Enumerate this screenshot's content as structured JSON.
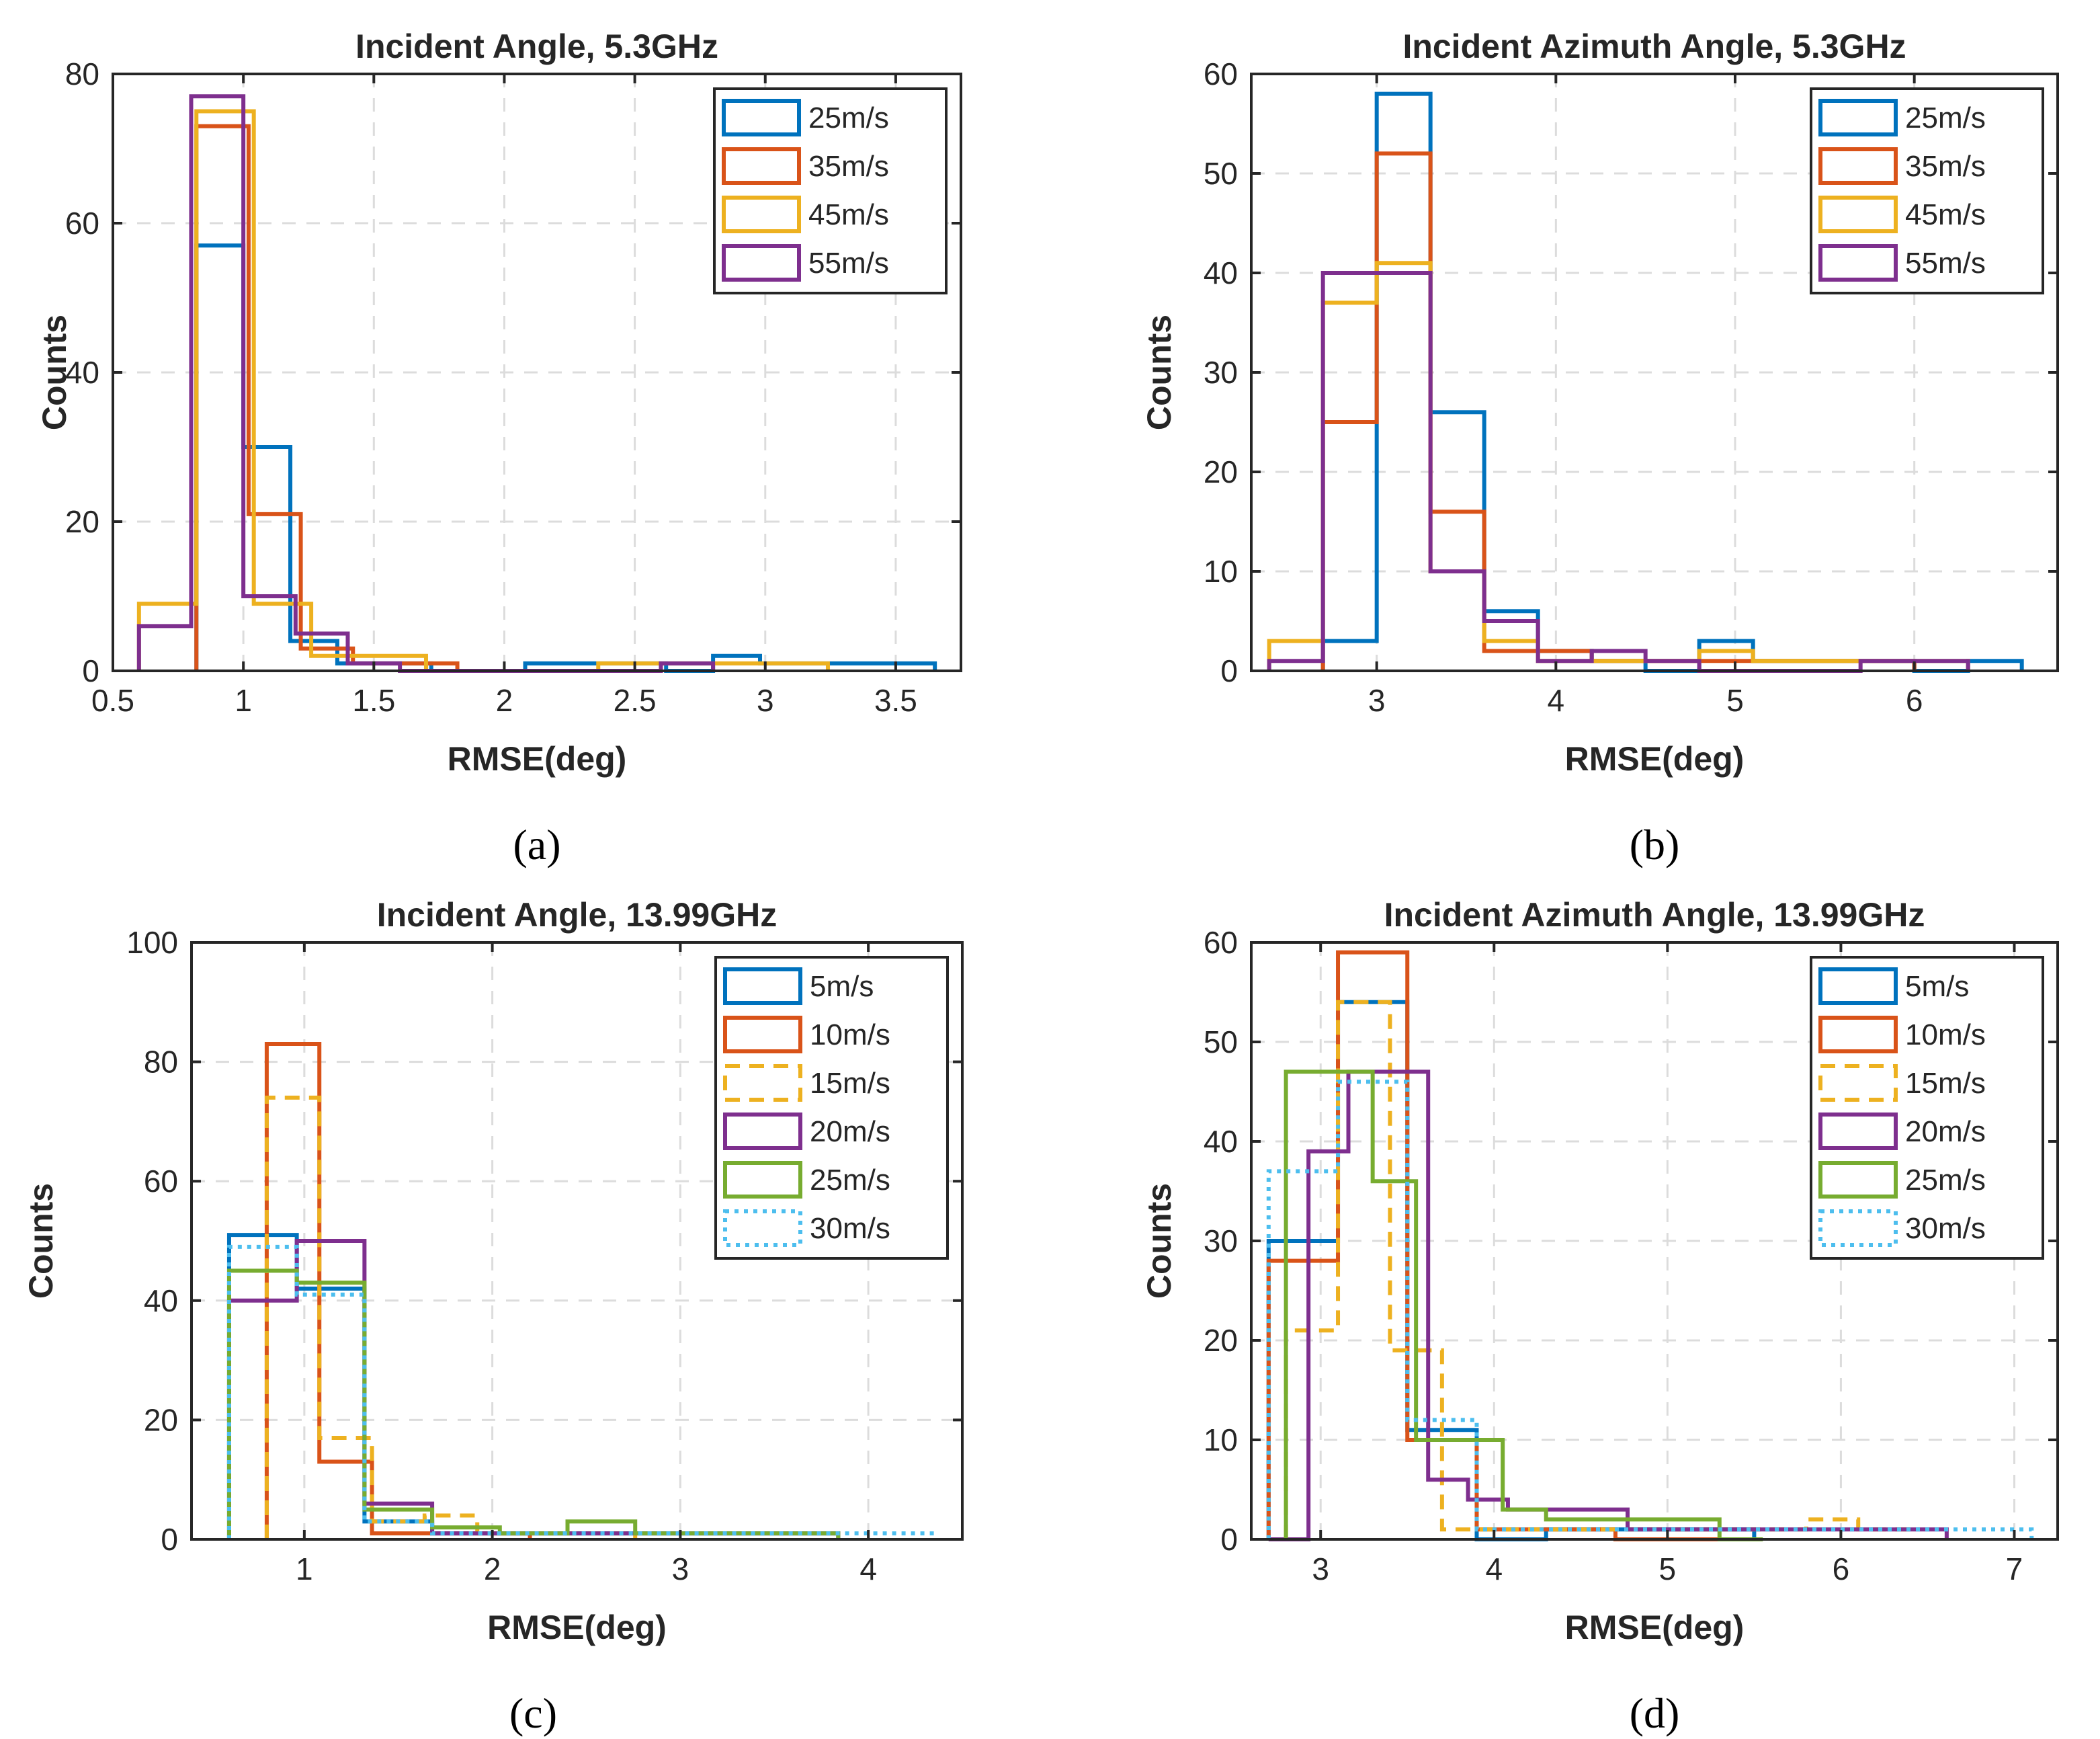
{
  "chart_data": [
    {
      "type": "histogram",
      "caption": "(a)",
      "title": "Incident Angle, 5.3GHz",
      "xlabel": "RMSE(deg)",
      "ylabel": "Counts",
      "xlim": [
        0.5,
        3.75
      ],
      "ylim": [
        0,
        80
      ],
      "xticks": [
        0.5,
        1,
        1.5,
        2,
        2.5,
        3,
        3.5
      ],
      "xtick_labels": [
        "0.5",
        "1",
        "1.5",
        "2",
        "2.5",
        "3",
        "3.5"
      ],
      "yticks": [
        0,
        20,
        40,
        60,
        80
      ],
      "ytick_labels": [
        "0",
        "20",
        "40",
        "60",
        "80"
      ],
      "grid": true,
      "legend_position": "top-right",
      "series": [
        {
          "name": "25m/s",
          "color": "#0072BD",
          "dash": "solid",
          "edges": [
            0.82,
            1.0,
            1.18,
            1.36,
            1.54,
            1.72,
            1.9,
            2.08,
            2.26,
            2.44,
            2.62,
            2.8,
            2.98,
            3.16,
            3.34,
            3.52,
            3.65
          ],
          "counts": [
            57,
            30,
            4,
            1,
            1,
            0,
            0,
            1,
            1,
            1,
            0,
            2,
            1,
            1,
            1,
            1
          ]
        },
        {
          "name": "35m/s",
          "color": "#D95319",
          "dash": "solid",
          "edges": [
            0.82,
            1.02,
            1.22,
            1.42,
            1.62,
            1.82
          ],
          "counts": [
            73,
            21,
            3,
            1,
            1
          ]
        },
        {
          "name": "45m/s",
          "color": "#EDB120",
          "dash": "solid",
          "edges": [
            0.6,
            0.82,
            1.04,
            1.26,
            1.48,
            1.7,
            1.92,
            2.14,
            2.36,
            2.58,
            2.8,
            3.02,
            3.24
          ],
          "counts": [
            9,
            75,
            9,
            2,
            2,
            0,
            0,
            0,
            1,
            1,
            1,
            1
          ]
        },
        {
          "name": "55m/s",
          "color": "#7E2F8E",
          "dash": "solid",
          "edges": [
            0.6,
            0.8,
            1.0,
            1.2,
            1.4,
            1.6,
            1.8,
            2.0,
            2.2,
            2.4,
            2.6,
            2.8
          ],
          "counts": [
            6,
            77,
            10,
            5,
            1,
            0,
            0,
            0,
            0,
            0,
            1
          ]
        }
      ]
    },
    {
      "type": "histogram",
      "caption": "(b)",
      "title": "Incident Azimuth Angle, 5.3GHz",
      "xlabel": "RMSE(deg)",
      "ylabel": "Counts",
      "xlim": [
        2.3,
        6.8
      ],
      "ylim": [
        0,
        60
      ],
      "xticks": [
        3,
        4,
        5,
        6
      ],
      "xtick_labels": [
        "3",
        "4",
        "5",
        "6"
      ],
      "yticks": [
        0,
        10,
        20,
        30,
        40,
        50,
        60
      ],
      "ytick_labels": [
        "0",
        "10",
        "20",
        "30",
        "40",
        "50",
        "60"
      ],
      "grid": true,
      "legend_position": "top-right",
      "series": [
        {
          "name": "25m/s",
          "color": "#0072BD",
          "dash": "solid",
          "edges": [
            2.7,
            3.0,
            3.3,
            3.6,
            3.9,
            4.2,
            4.5,
            4.8,
            5.1,
            5.4,
            5.7,
            6.0,
            6.3,
            6.6
          ],
          "counts": [
            3,
            58,
            26,
            6,
            2,
            1,
            0,
            3,
            1,
            1,
            1,
            0,
            1
          ]
        },
        {
          "name": "35m/s",
          "color": "#D95319",
          "dash": "solid",
          "edges": [
            2.7,
            3.0,
            3.3,
            3.6,
            3.9,
            4.2,
            4.5,
            4.8,
            5.1,
            5.4,
            5.7,
            6.0
          ],
          "counts": [
            25,
            52,
            16,
            2,
            2,
            1,
            1,
            1,
            1,
            1,
            1
          ]
        },
        {
          "name": "45m/s",
          "color": "#EDB120",
          "dash": "solid",
          "edges": [
            2.4,
            2.7,
            3.0,
            3.3,
            3.6,
            3.9,
            4.2,
            4.5,
            4.8,
            5.1,
            5.4,
            5.7,
            6.0,
            6.3
          ],
          "counts": [
            3,
            37,
            41,
            10,
            3,
            1,
            1,
            1,
            2,
            1,
            1,
            1,
            1
          ]
        },
        {
          "name": "55m/s",
          "color": "#7E2F8E",
          "dash": "solid",
          "edges": [
            2.4,
            2.7,
            3.0,
            3.3,
            3.6,
            3.9,
            4.2,
            4.5,
            4.8,
            5.1,
            5.4,
            5.7,
            6.0,
            6.3
          ],
          "counts": [
            1,
            40,
            40,
            10,
            5,
            1,
            2,
            1,
            0,
            0,
            0,
            1,
            1
          ]
        }
      ]
    },
    {
      "type": "histogram",
      "caption": "(c)",
      "title": "Incident Angle, 13.99GHz",
      "xlabel": "RMSE(deg)",
      "ylabel": "Counts",
      "xlim": [
        0.4,
        4.5
      ],
      "ylim": [
        0,
        100
      ],
      "xticks": [
        1,
        2,
        3,
        4
      ],
      "xtick_labels": [
        "1",
        "2",
        "3",
        "4"
      ],
      "yticks": [
        0,
        20,
        40,
        60,
        80,
        100
      ],
      "ytick_labels": [
        "0",
        "20",
        "40",
        "60",
        "80",
        "100"
      ],
      "grid": true,
      "legend_position": "top-right",
      "series": [
        {
          "name": "5m/s",
          "color": "#0072BD",
          "dash": "solid",
          "edges": [
            0.6,
            0.96,
            1.32,
            1.68,
            2.04,
            2.4,
            2.76,
            3.12,
            3.48,
            3.84
          ],
          "counts": [
            51,
            42,
            3,
            1,
            1,
            1,
            1,
            1,
            1
          ]
        },
        {
          "name": "10m/s",
          "color": "#D95319",
          "dash": "solid",
          "edges": [
            0.8,
            1.08,
            1.36,
            1.64,
            1.92,
            2.2
          ],
          "counts": [
            83,
            13,
            1,
            1,
            1
          ]
        },
        {
          "name": "15m/s",
          "color": "#EDB120",
          "dash": "dashed",
          "edges": [
            0.8,
            1.08,
            1.36,
            1.64,
            1.92,
            2.2,
            2.48,
            2.76
          ],
          "counts": [
            74,
            17,
            3,
            4,
            1,
            1,
            1
          ]
        },
        {
          "name": "20m/s",
          "color": "#7E2F8E",
          "dash": "solid",
          "edges": [
            0.6,
            0.96,
            1.32,
            1.68,
            2.04,
            2.4,
            2.76,
            3.12,
            3.48,
            3.84
          ],
          "counts": [
            40,
            50,
            6,
            1,
            1,
            1,
            1,
            1,
            1
          ]
        },
        {
          "name": "25m/s",
          "color": "#77AC30",
          "dash": "solid",
          "edges": [
            0.6,
            0.96,
            1.32,
            1.68,
            2.04,
            2.4,
            2.76,
            3.12,
            3.48,
            3.84
          ],
          "counts": [
            45,
            43,
            5,
            2,
            1,
            3,
            1,
            1,
            1
          ]
        },
        {
          "name": "30m/s",
          "color": "#4DBEEE",
          "dash": "dotted",
          "edges": [
            0.6,
            0.96,
            1.32,
            1.68,
            2.04,
            2.4,
            2.76,
            3.12,
            3.48,
            3.84,
            4.35
          ],
          "counts": [
            49,
            41,
            3,
            1,
            1,
            1,
            1,
            1,
            1,
            1
          ]
        }
      ]
    },
    {
      "type": "histogram",
      "caption": "(d)",
      "title": "Incident Azimuth Angle, 13.99GHz",
      "xlabel": "RMSE(deg)",
      "ylabel": "Counts",
      "xlim": [
        2.6,
        7.25
      ],
      "ylim": [
        0,
        60
      ],
      "xticks": [
        3,
        4,
        5,
        6,
        7
      ],
      "xtick_labels": [
        "3",
        "4",
        "5",
        "6",
        "7"
      ],
      "yticks": [
        0,
        10,
        20,
        30,
        40,
        50,
        60
      ],
      "ytick_labels": [
        "0",
        "10",
        "20",
        "30",
        "40",
        "50",
        "60"
      ],
      "grid": true,
      "legend_position": "top-right",
      "series": [
        {
          "name": "5m/s",
          "color": "#0072BD",
          "dash": "solid",
          "edges": [
            2.7,
            3.1,
            3.5,
            3.9,
            4.3,
            4.7,
            5.1,
            5.5
          ],
          "counts": [
            30,
            54,
            11,
            0,
            1,
            1,
            1
          ]
        },
        {
          "name": "10m/s",
          "color": "#D95319",
          "dash": "solid",
          "edges": [
            2.7,
            3.1,
            3.5,
            3.9,
            4.3,
            4.7,
            5.1,
            5.5
          ],
          "counts": [
            28,
            59,
            10,
            1,
            1,
            0,
            0
          ]
        },
        {
          "name": "15m/s",
          "color": "#EDB120",
          "dash": "dashed",
          "edges": [
            2.8,
            3.1,
            3.4,
            3.7,
            4.0,
            4.3,
            4.6,
            4.9,
            5.2,
            5.5,
            5.8,
            6.1,
            6.4
          ],
          "counts": [
            21,
            54,
            19,
            1,
            1,
            1,
            1,
            1,
            1,
            1,
            2,
            1
          ]
        },
        {
          "name": "20m/s",
          "color": "#7E2F8E",
          "dash": "solid",
          "edges": [
            2.7,
            2.93,
            3.16,
            3.39,
            3.62,
            3.85,
            4.08,
            4.31,
            4.54,
            4.77,
            5.0,
            5.23,
            5.46,
            5.69,
            5.92,
            6.15,
            6.38,
            6.61
          ],
          "counts": [
            0,
            39,
            47,
            47,
            6,
            4,
            3,
            3,
            3,
            1,
            1,
            1,
            1,
            1,
            1,
            1,
            1
          ]
        },
        {
          "name": "25m/s",
          "color": "#77AC30",
          "dash": "solid",
          "edges": [
            2.8,
            3.05,
            3.3,
            3.55,
            3.8,
            4.05,
            4.3,
            4.55,
            4.8,
            5.05,
            5.3,
            5.55
          ],
          "counts": [
            47,
            47,
            36,
            10,
            10,
            3,
            2,
            2,
            2,
            2,
            0
          ]
        },
        {
          "name": "30m/s",
          "color": "#4DBEEE",
          "dash": "dotted",
          "edges": [
            2.7,
            3.1,
            3.5,
            3.9,
            4.3,
            4.7,
            5.1,
            5.5,
            5.9,
            6.3,
            6.7,
            7.1
          ],
          "counts": [
            37,
            46,
            12,
            1,
            1,
            1,
            1,
            1,
            1,
            1,
            1
          ]
        }
      ]
    }
  ]
}
